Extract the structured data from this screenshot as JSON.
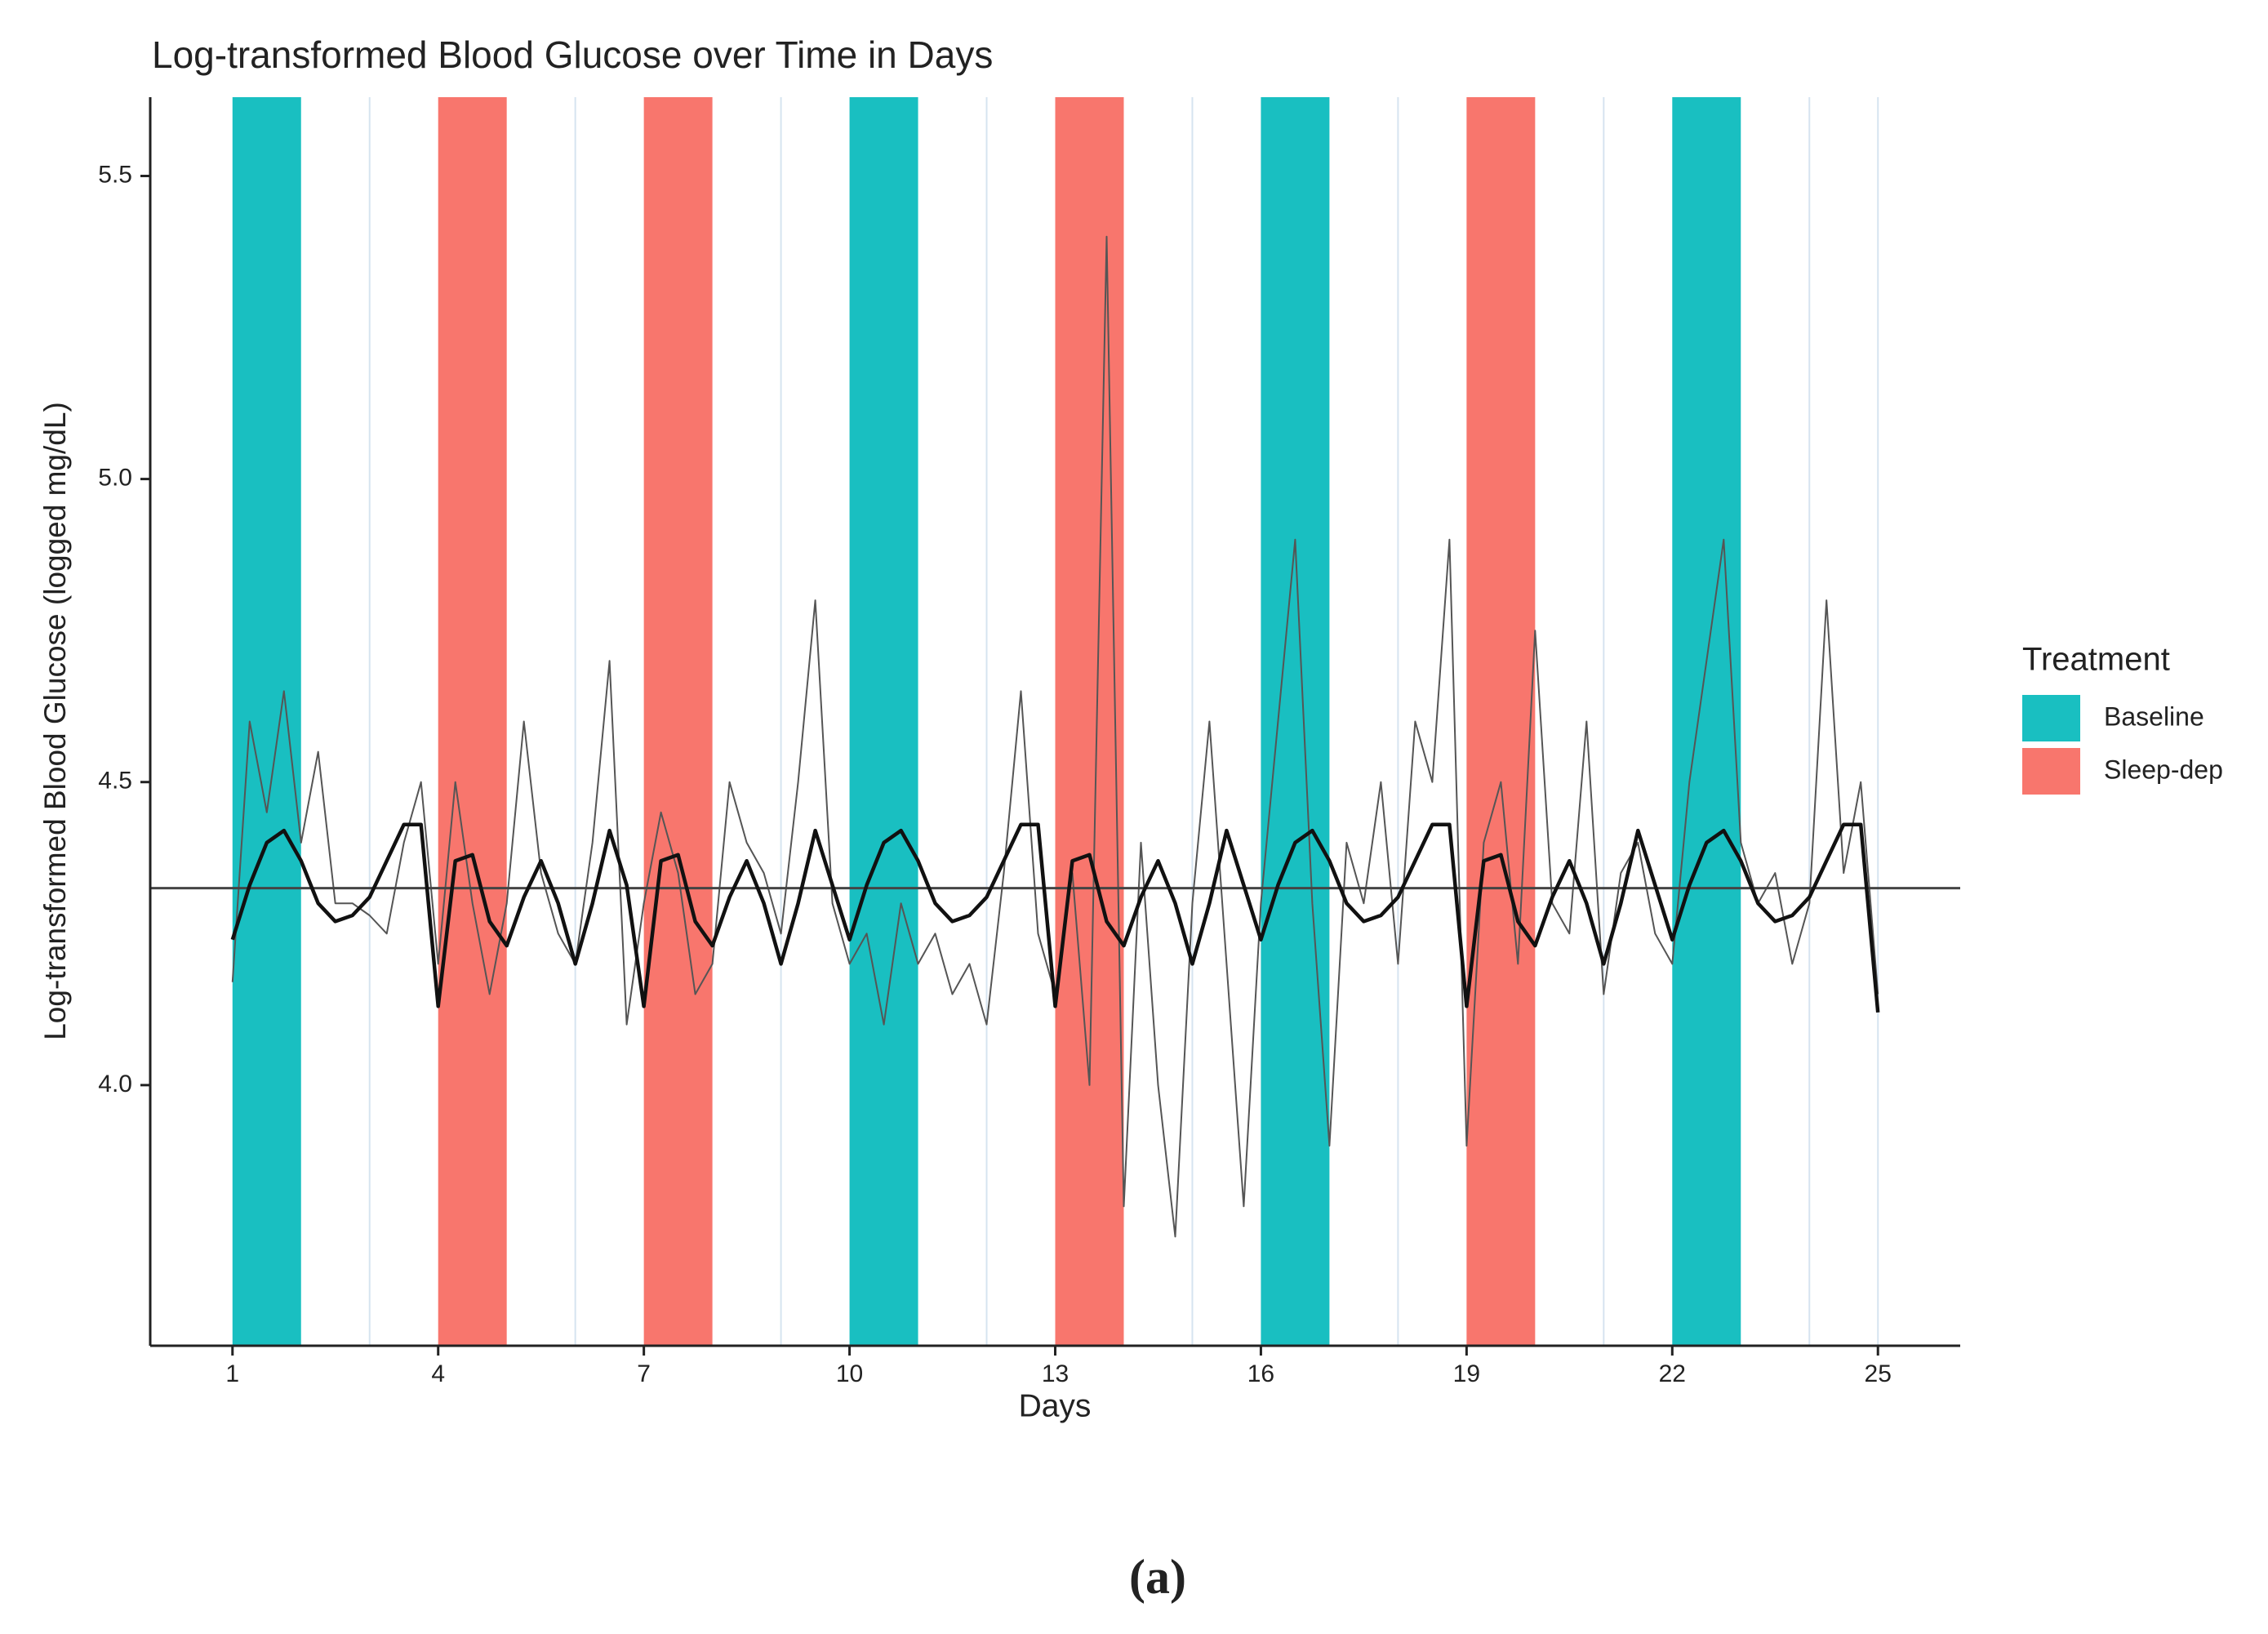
{
  "chart_data": {
    "type": "line",
    "title": "Log-transformed Blood Glucose over Time in Days",
    "x_label": "Days",
    "y_label": "Log-transformed Blood Glucose (logged mg/dL)",
    "caption": "(a)",
    "xlim": [
      -0.2,
      26.2
    ],
    "ylim": [
      3.57,
      5.63
    ],
    "xticks": [
      1,
      4,
      7,
      10,
      13,
      16,
      19,
      22,
      25
    ],
    "yticks": [
      {
        "value": 4,
        "label": "4.0"
      },
      {
        "value": 4.5,
        "label": "4.5"
      },
      {
        "value": 5,
        "label": "5.0"
      },
      {
        "value": 5.5,
        "label": "5.5"
      }
    ],
    "vlines": [
      3,
      6,
      9,
      12,
      15,
      18,
      21,
      24,
      25
    ],
    "reference_line": 4.325,
    "legend": {
      "title": "Treatment",
      "items": [
        {
          "name": "Baseline",
          "color": "#19bfc1"
        },
        {
          "name": "Sleep-dep",
          "color": "#f8766d"
        }
      ]
    },
    "bands": [
      {
        "start": 1,
        "end": 2,
        "treatment": 0
      },
      {
        "start": 4,
        "end": 5,
        "treatment": 1
      },
      {
        "start": 7,
        "end": 8,
        "treatment": 1
      },
      {
        "start": 10,
        "end": 11,
        "treatment": 0
      },
      {
        "start": 13,
        "end": 14,
        "treatment": 1
      },
      {
        "start": 16,
        "end": 17,
        "treatment": 0
      },
      {
        "start": 19,
        "end": 20,
        "treatment": 1
      },
      {
        "start": 22,
        "end": 23,
        "treatment": 0
      }
    ],
    "line_color": "#555555",
    "trend_color": "#111111",
    "x": [
      1,
      1.25,
      1.5,
      1.75,
      2,
      2.25,
      2.5,
      2.75,
      3,
      3.25,
      3.5,
      3.75,
      4,
      4.25,
      4.5,
      4.75,
      5,
      5.25,
      5.5,
      5.75,
      6,
      6.25,
      6.5,
      6.75,
      7,
      7.25,
      7.5,
      7.75,
      8,
      8.25,
      8.5,
      8.75,
      9,
      9.25,
      9.5,
      9.75,
      10,
      10.25,
      10.5,
      10.75,
      11,
      11.25,
      11.5,
      11.75,
      12,
      12.25,
      12.5,
      12.75,
      13,
      13.25,
      13.5,
      13.75,
      14,
      14.25,
      14.5,
      14.75,
      15,
      15.25,
      15.5,
      15.75,
      16,
      16.25,
      16.5,
      16.75,
      17,
      17.25,
      17.5,
      17.75,
      18,
      18.25,
      18.5,
      18.75,
      19,
      19.25,
      19.5,
      19.75,
      20,
      20.25,
      20.5,
      20.75,
      21,
      21.25,
      21.5,
      21.75,
      22,
      22.25,
      22.5,
      22.75,
      23,
      23.25,
      23.5,
      23.75,
      24,
      24.25,
      24.5,
      24.75,
      25
    ],
    "values": [
      4.17,
      4.6,
      4.45,
      4.65,
      4.4,
      4.55,
      4.3,
      4.3,
      4.28,
      4.25,
      4.4,
      4.5,
      4.2,
      4.5,
      4.3,
      4.15,
      4.3,
      4.6,
      4.35,
      4.25,
      4.2,
      4.4,
      4.7,
      4.1,
      4.3,
      4.45,
      4.35,
      4.15,
      4.2,
      4.5,
      4.4,
      4.35,
      4.25,
      4.5,
      4.8,
      4.3,
      4.2,
      4.25,
      4.1,
      4.3,
      4.2,
      4.25,
      4.15,
      4.2,
      4.1,
      4.35,
      4.65,
      4.25,
      4.15,
      4.35,
      4.0,
      5.4,
      3.8,
      4.4,
      4.0,
      3.75,
      4.3,
      4.6,
      4.2,
      3.8,
      4.3,
      4.6,
      4.9,
      4.3,
      3.9,
      4.4,
      4.3,
      4.5,
      4.2,
      4.6,
      4.5,
      4.9,
      3.9,
      4.4,
      4.5,
      4.2,
      4.75,
      4.3,
      4.25,
      4.6,
      4.15,
      4.35,
      4.4,
      4.25,
      4.2,
      4.5,
      4.7,
      4.9,
      4.4,
      4.3,
      4.35,
      4.2,
      4.3,
      4.8,
      4.35,
      4.5,
      4.15
    ],
    "trend": [
      4.24,
      4.33,
      4.4,
      4.42,
      4.37,
      4.3,
      4.27,
      4.28,
      4.31,
      4.37,
      4.43,
      4.43,
      4.13,
      4.37,
      4.38,
      4.27,
      4.23,
      4.31,
      4.37,
      4.3,
      4.2,
      4.3,
      4.42,
      4.33,
      4.13,
      4.37,
      4.38,
      4.27,
      4.23,
      4.31,
      4.37,
      4.3,
      4.2,
      4.3,
      4.42,
      4.33,
      4.24,
      4.33,
      4.4,
      4.42,
      4.37,
      4.3,
      4.27,
      4.28,
      4.31,
      4.37,
      4.43,
      4.43,
      4.13,
      4.37,
      4.38,
      4.27,
      4.23,
      4.31,
      4.37,
      4.3,
      4.2,
      4.3,
      4.42,
      4.33,
      4.24,
      4.33,
      4.4,
      4.42,
      4.37,
      4.3,
      4.27,
      4.28,
      4.31,
      4.37,
      4.43,
      4.43,
      4.13,
      4.37,
      4.38,
      4.27,
      4.23,
      4.31,
      4.37,
      4.3,
      4.2,
      4.3,
      4.42,
      4.33,
      4.24,
      4.33,
      4.4,
      4.42,
      4.37,
      4.3,
      4.27,
      4.28,
      4.31,
      4.37,
      4.43,
      4.43,
      4.12
    ]
  }
}
